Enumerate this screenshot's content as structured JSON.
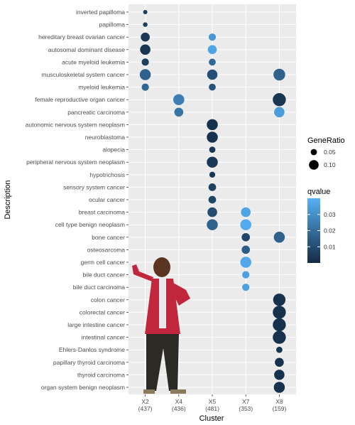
{
  "chart_data": {
    "type": "scatter",
    "xlabel": "Cluster",
    "ylabel": "Description",
    "categories_x": [
      {
        "name": "X2",
        "count": "(437)"
      },
      {
        "name": "X4",
        "count": "(436)"
      },
      {
        "name": "X5",
        "count": "(481)"
      },
      {
        "name": "X7",
        "count": "(353)"
      },
      {
        "name": "X8",
        "count": "(159)"
      }
    ],
    "categories_y": [
      "inverted papilloma",
      "papilloma",
      "hereditary breast ovarian cancer",
      "autosomal dominant disease",
      "acute myeloid leukemia",
      "musculoskeletal system cancer",
      "myeloid leukemia",
      "female reproductive organ cancer",
      "pancreatic carcinoma",
      "autonomic nervous system neoplasm",
      "neuroblastoma",
      "alopecia",
      "peripheral nervous system neoplasm",
      "hypotrichosis",
      "sensory system cancer",
      "ocular cancer",
      "breast carcinoma",
      "cell type benign neoplasm",
      "bone cancer",
      "osteosarcoma",
      "germ cell cancer",
      "bile duct cancer",
      "bile duct carcinoma",
      "colon cancer",
      "colorectal cancer",
      "large intestine cancer",
      "intestinal cancer",
      "Ehlers-Danlos syndrome",
      "papillary thyroid carcinoma",
      "thyroid carcinoma",
      "organ system benign neoplasm"
    ],
    "points": [
      {
        "x": "X2",
        "y": "inverted papilloma",
        "gene_ratio": 0.02,
        "qvalue": 0.005
      },
      {
        "x": "X2",
        "y": "papilloma",
        "gene_ratio": 0.025,
        "qvalue": 0.005
      },
      {
        "x": "X2",
        "y": "hereditary breast ovarian cancer",
        "gene_ratio": 0.09,
        "qvalue": 0.004
      },
      {
        "x": "X5",
        "y": "hereditary breast ovarian cancer",
        "gene_ratio": 0.065,
        "qvalue": 0.032
      },
      {
        "x": "X2",
        "y": "autosomal dominant disease",
        "gene_ratio": 0.11,
        "qvalue": 0.003
      },
      {
        "x": "X5",
        "y": "autosomal dominant disease",
        "gene_ratio": 0.09,
        "qvalue": 0.036
      },
      {
        "x": "X2",
        "y": "acute myeloid leukemia",
        "gene_ratio": 0.065,
        "qvalue": 0.006
      },
      {
        "x": "X5",
        "y": "acute myeloid leukemia",
        "gene_ratio": 0.06,
        "qvalue": 0.018
      },
      {
        "x": "X2",
        "y": "musculoskeletal system cancer",
        "gene_ratio": 0.12,
        "qvalue": 0.016
      },
      {
        "x": "X5",
        "y": "musculoskeletal system cancer",
        "gene_ratio": 0.11,
        "qvalue": 0.011
      },
      {
        "x": "X8",
        "y": "musculoskeletal system cancer",
        "gene_ratio": 0.13,
        "qvalue": 0.016
      },
      {
        "x": "X2",
        "y": "myeloid leukemia",
        "gene_ratio": 0.065,
        "qvalue": 0.018
      },
      {
        "x": "X5",
        "y": "myeloid leukemia",
        "gene_ratio": 0.06,
        "qvalue": 0.012
      },
      {
        "x": "X4",
        "y": "female reproductive organ cancer",
        "gene_ratio": 0.12,
        "qvalue": 0.025
      },
      {
        "x": "X8",
        "y": "female reproductive organ cancer",
        "gene_ratio": 0.15,
        "qvalue": 0.003
      },
      {
        "x": "X4",
        "y": "pancreatic carcinoma",
        "gene_ratio": 0.09,
        "qvalue": 0.022
      },
      {
        "x": "X8",
        "y": "pancreatic carcinoma",
        "gene_ratio": 0.11,
        "qvalue": 0.034
      },
      {
        "x": "X5",
        "y": "autonomic nervous system neoplasm",
        "gene_ratio": 0.12,
        "qvalue": 0.002
      },
      {
        "x": "X5",
        "y": "neuroblastoma",
        "gene_ratio": 0.12,
        "qvalue": 0.002
      },
      {
        "x": "X5",
        "y": "alopecia",
        "gene_ratio": 0.05,
        "qvalue": 0.004
      },
      {
        "x": "X5",
        "y": "peripheral nervous system neoplasm",
        "gene_ratio": 0.12,
        "qvalue": 0.004
      },
      {
        "x": "X5",
        "y": "hypotrichosis",
        "gene_ratio": 0.045,
        "qvalue": 0.004
      },
      {
        "x": "X5",
        "y": "sensory system cancer",
        "gene_ratio": 0.07,
        "qvalue": 0.007
      },
      {
        "x": "X5",
        "y": "ocular cancer",
        "gene_ratio": 0.07,
        "qvalue": 0.008
      },
      {
        "x": "X5",
        "y": "breast carcinoma",
        "gene_ratio": 0.1,
        "qvalue": 0.01
      },
      {
        "x": "X7",
        "y": "breast carcinoma",
        "gene_ratio": 0.1,
        "qvalue": 0.036
      },
      {
        "x": "X5",
        "y": "cell type benign neoplasm",
        "gene_ratio": 0.12,
        "qvalue": 0.016
      },
      {
        "x": "X7",
        "y": "cell type benign neoplasm",
        "gene_ratio": 0.12,
        "qvalue": 0.038
      },
      {
        "x": "X7",
        "y": "bone cancer",
        "gene_ratio": 0.08,
        "qvalue": 0.008
      },
      {
        "x": "X8",
        "y": "bone cancer",
        "gene_ratio": 0.12,
        "qvalue": 0.016
      },
      {
        "x": "X7",
        "y": "osteosarcoma",
        "gene_ratio": 0.08,
        "qvalue": 0.015
      },
      {
        "x": "X7",
        "y": "germ cell cancer",
        "gene_ratio": 0.12,
        "qvalue": 0.037
      },
      {
        "x": "X7",
        "y": "bile duct cancer",
        "gene_ratio": 0.065,
        "qvalue": 0.035
      },
      {
        "x": "X7",
        "y": "bile duct carcinoma",
        "gene_ratio": 0.065,
        "qvalue": 0.035
      },
      {
        "x": "X8",
        "y": "colon cancer",
        "gene_ratio": 0.14,
        "qvalue": 0.002
      },
      {
        "x": "X8",
        "y": "colorectal cancer",
        "gene_ratio": 0.15,
        "qvalue": 0.002
      },
      {
        "x": "X8",
        "y": "large intestine cancer",
        "gene_ratio": 0.15,
        "qvalue": 0.002
      },
      {
        "x": "X8",
        "y": "intestinal cancer",
        "gene_ratio": 0.15,
        "qvalue": 0.002
      },
      {
        "x": "X8",
        "y": "Ehlers-Danlos syndrome",
        "gene_ratio": 0.05,
        "qvalue": 0.003
      },
      {
        "x": "X8",
        "y": "papillary thyroid carcinoma",
        "gene_ratio": 0.09,
        "qvalue": 0.002
      },
      {
        "x": "X8",
        "y": "thyroid carcinoma",
        "gene_ratio": 0.11,
        "qvalue": 0.002
      },
      {
        "x": "X8",
        "y": "organ system benign neoplasm",
        "gene_ratio": 0.12,
        "qvalue": 0.002
      }
    ],
    "size_legend": {
      "title": "GeneRatio",
      "values": [
        0.05,
        0.1
      ],
      "labels": [
        "0.05",
        "0.10"
      ]
    },
    "color_legend": {
      "title": "qvalue",
      "range": [
        0.0,
        0.04
      ],
      "ticks": [
        0.01,
        0.02,
        0.03
      ],
      "labels": [
        "0.01",
        "0.02",
        "0.03"
      ],
      "low_color": "#132B43",
      "high_color": "#56B1F7"
    },
    "grid": true,
    "panel_background": "#ebebeb",
    "legend_placement": "right"
  }
}
